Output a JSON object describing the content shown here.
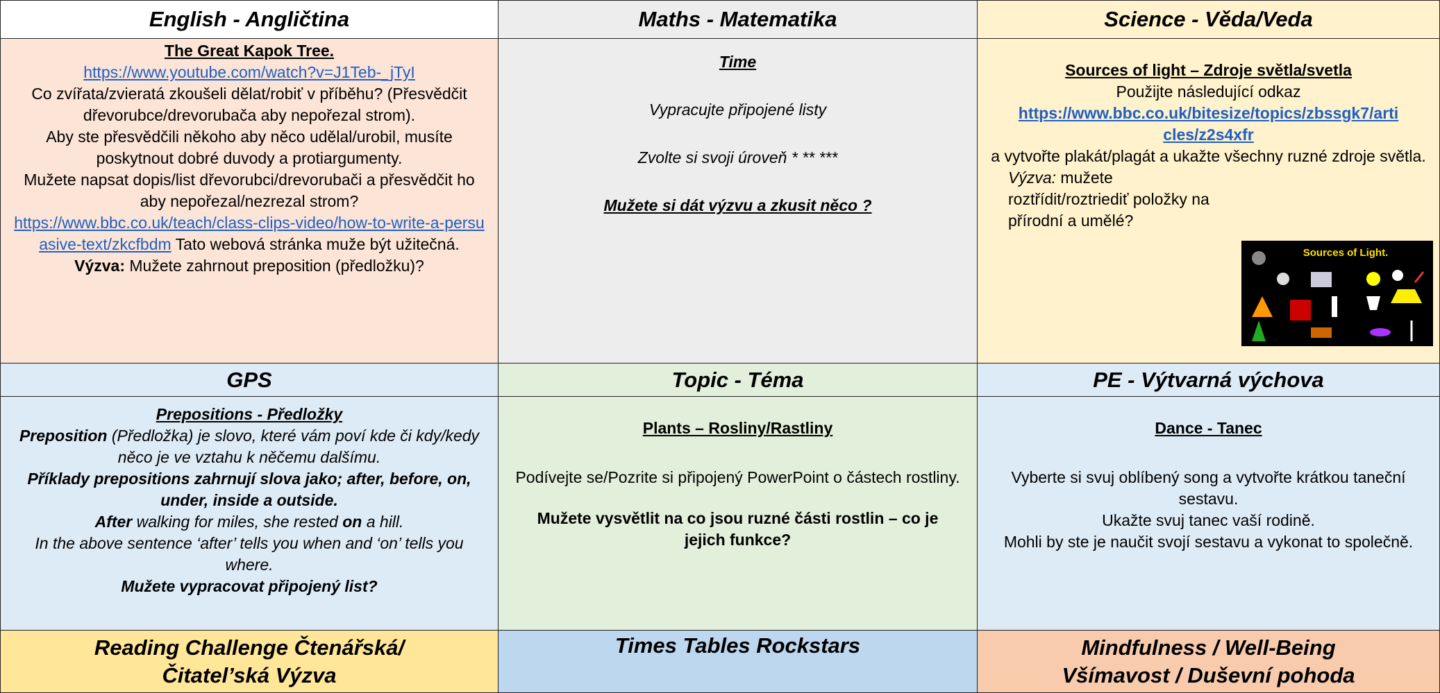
{
  "english": {
    "header": "English - Angličtina",
    "title": "The Great Kapok Tree.",
    "link1": "https://www.youtube.com/watch?v=J1Teb-_jTyI",
    "p1": "Co zvířata/zvieratá zkoušeli dělat/robiť v příběhu? (Přesvědčit dřevorubce/drevorubača aby nepořezal strom).",
    "p2": "Aby ste přesvědčili někoho aby něco udělal/urobil, musíte poskytnout dobré duvody a protiargumenty.",
    "p3": "Mužete napsat dopis/list dřevorubci/drevorubači a přesvědčit ho aby nepořezal/nezrezal strom?",
    "link2": "https://www.bbc.co.uk/teach/class-clips-video/how-to-write-a-persuasive-text/zkcfbdm",
    "p4": "Tato webová stránka muže být užitečná.",
    "challenge_label": "Výzva:",
    "challenge": "Mužete zahrnout preposition (předložku)?"
  },
  "maths": {
    "header": "Maths - Matematika",
    "title": "Time",
    "p1": "Vypracujte připojené listy",
    "p2": "Zvolte si svoji úroveň * ** ***",
    "p3": "Mužete si dát výzvu a zkusit něco ?"
  },
  "science": {
    "header": "Science - Věda/Veda",
    "title": "Sources of light – Zdroje světla/svetla",
    "p1": "Použijte následující odkaz",
    "link": "https://www.bbc.co.uk/bitesize/topics/zbssgk7/articles/z2s4xfr",
    "p2": "a vytvořte plakát/plagát a ukažte všechny ruzné zdroje světla.",
    "challenge_label": "Výzva:",
    "challenge": "mužete roztřídit/roztriediť položky na přírodní a umělé?",
    "image_caption": "Sources of Light."
  },
  "gps": {
    "header": "GPS",
    "title": "Prepositions - Předložky",
    "p1_bold": "Preposition",
    "p1": "(Předložka) je slovo, které vám poví kde či kdy/kedy něco je ve vztahu k něčemu dalšímu.",
    "p2": "Příklady prepositions zahrnují slova jako; after, before, on, under, inside a outside.",
    "p3_a": "After",
    "p3_b": "walking for miles, she rested",
    "p3_c": "on",
    "p3_d": "a hill.",
    "p4": "In the above sentence ‘after’ tells you when and ‘on’ tells you where.",
    "p5": "Mužete vypracovat připojený list?"
  },
  "topic": {
    "header": "Topic - Téma",
    "title": "Plants – Rosliny/Rastliny",
    "p1": "Podívejte se/Pozrite si připojený PowerPoint o částech rostliny.",
    "p2": "Mužete vysvětlit na co jsou ruzné části rostlin – co je jejich funkce?"
  },
  "pe": {
    "header": "PE - Výtvarná výchova",
    "title": "Dance - Tanec",
    "p1": "Vyberte si svuj oblíbený song a vytvořte krátkou taneční sestavu.",
    "p2": "Ukažte svuj tanec vaší rodině.",
    "p3": "Mohli by ste je naučit svojí sestavu a vykonat to společně."
  },
  "bottom": {
    "reading": "Reading Challenge Čtenářská/Čitatel’ská Výzva",
    "times": "Times Tables Rockstars",
    "mind": "Mindfulness / Well-Being Všímavost / Duševní pohoda"
  }
}
